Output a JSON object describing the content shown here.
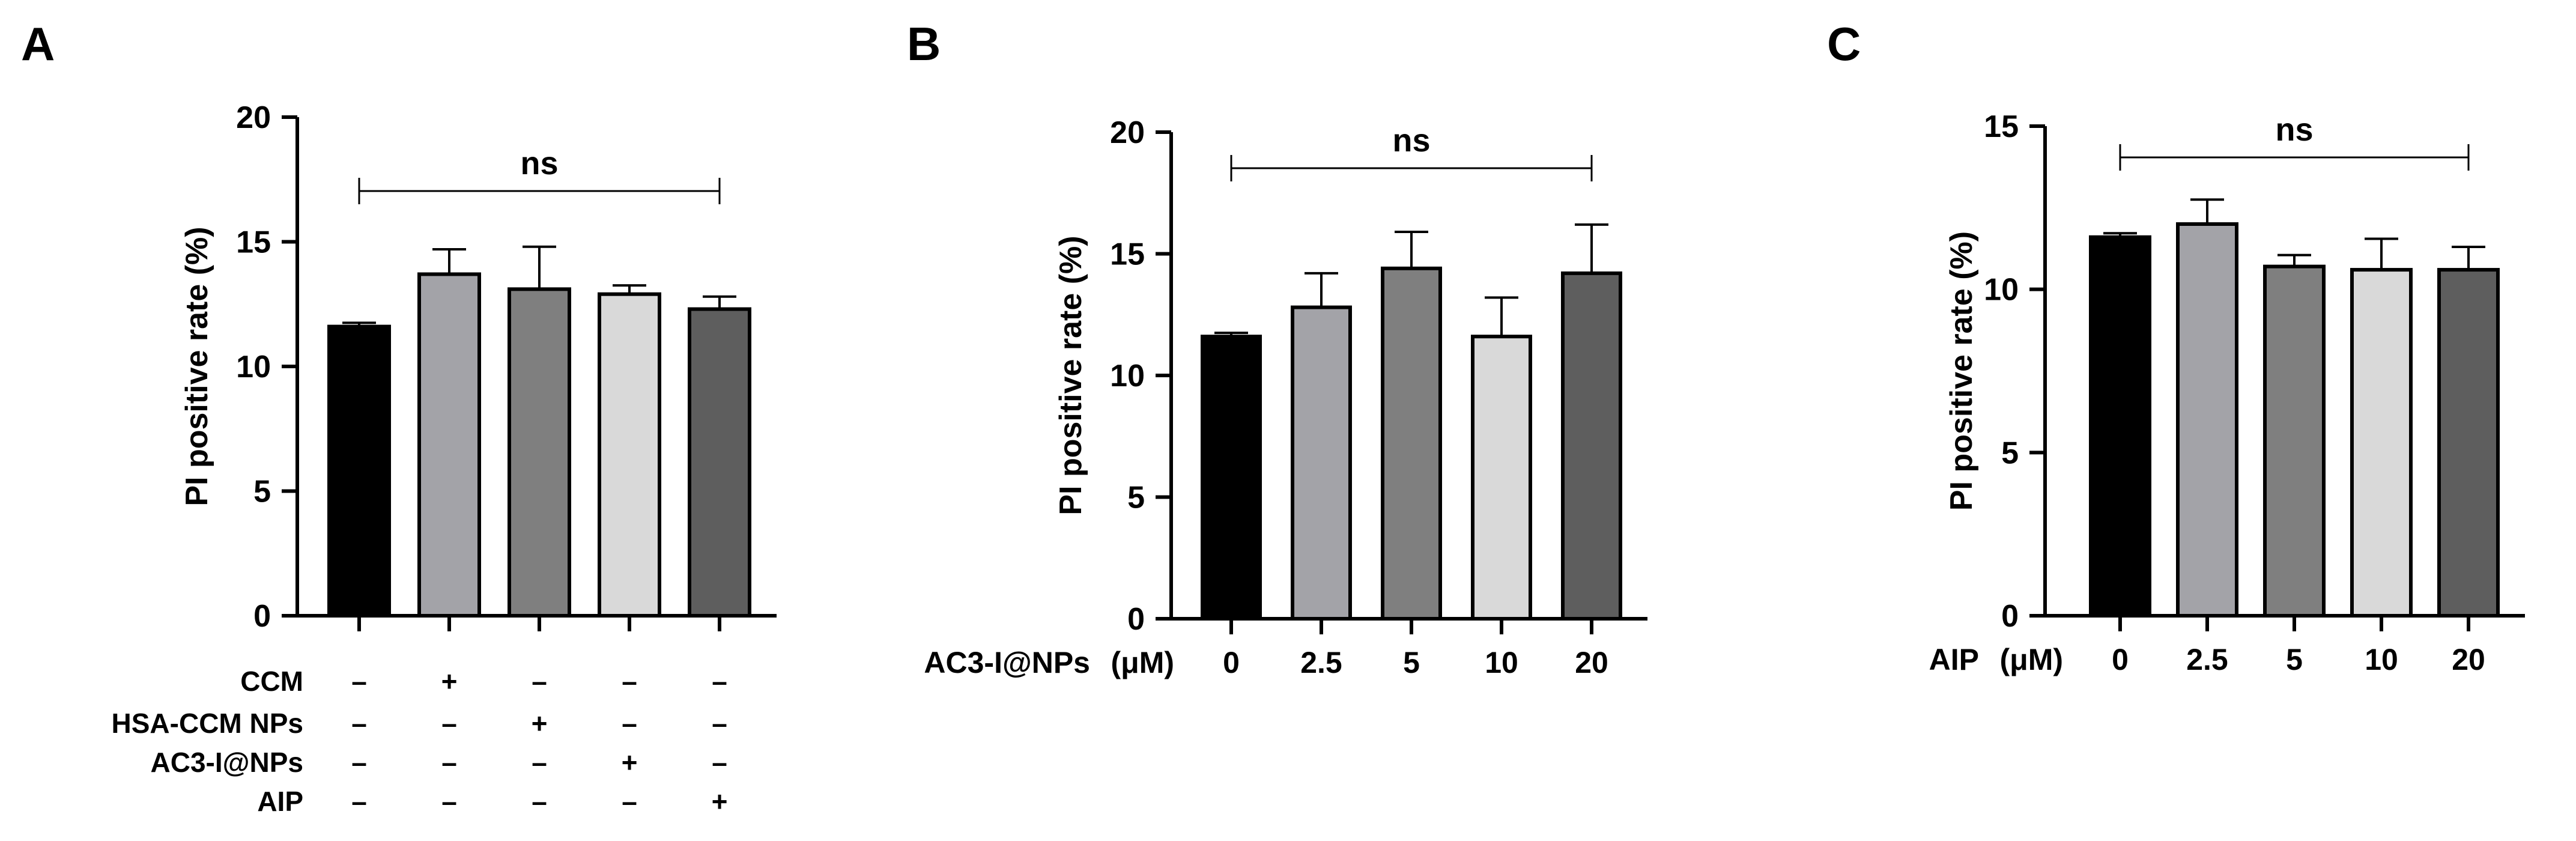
{
  "chart_data": [
    {
      "panel_label": "A",
      "type": "bar",
      "ylabel": "PI positive rate (%)",
      "ylim": [
        0,
        20
      ],
      "yticks": [
        0,
        5,
        10,
        15,
        20
      ],
      "bar_colors": [
        "#000000",
        "#a3a3a8",
        "#7f7f7f",
        "#d9d9d9",
        "#5e5e5e"
      ],
      "values": [
        11.6,
        13.7,
        13.1,
        12.9,
        12.3
      ],
      "errors": [
        0.15,
        1.0,
        1.7,
        0.35,
        0.5
      ],
      "significance": {
        "label": "ns",
        "from": 0,
        "to": 4
      },
      "condition_table": {
        "rows": [
          {
            "label": "CCM",
            "marks": [
              "–",
              "+",
              "–",
              "–",
              "–"
            ]
          },
          {
            "label": "HSA-CCM NPs",
            "marks": [
              "–",
              "–",
              "+",
              "–",
              "–"
            ]
          },
          {
            "label": "AC3-I@NPs",
            "marks": [
              "–",
              "–",
              "–",
              "+",
              "–"
            ]
          },
          {
            "label": "AIP",
            "marks": [
              "–",
              "–",
              "–",
              "–",
              "+"
            ]
          }
        ]
      }
    },
    {
      "panel_label": "B",
      "type": "bar",
      "ylabel": "PI positive rate (%)",
      "ylim": [
        0,
        20
      ],
      "yticks": [
        0,
        5,
        10,
        15,
        20
      ],
      "x_title": "AC3-I@NPs",
      "x_unit": "(μM)",
      "categories": [
        "0",
        "2.5",
        "5",
        "10",
        "20"
      ],
      "bar_colors": [
        "#000000",
        "#a3a3a8",
        "#7f7f7f",
        "#d9d9d9",
        "#5e5e5e"
      ],
      "values": [
        11.6,
        12.8,
        14.4,
        11.6,
        14.2
      ],
      "errors": [
        0.15,
        1.4,
        1.5,
        1.6,
        2.0
      ],
      "significance": {
        "label": "ns",
        "from": 0,
        "to": 4
      }
    },
    {
      "panel_label": "C",
      "type": "bar",
      "ylabel": "PI positive rate (%)",
      "ylim": [
        0,
        15
      ],
      "yticks": [
        0,
        5,
        10,
        15
      ],
      "x_title": "AIP",
      "x_unit": "(μM)",
      "categories": [
        "0",
        "2.5",
        "5",
        "10",
        "20"
      ],
      "bar_colors": [
        "#000000",
        "#a3a3a8",
        "#7f7f7f",
        "#d9d9d9",
        "#5e5e5e"
      ],
      "values": [
        11.6,
        12.0,
        10.7,
        10.6,
        10.6
      ],
      "errors": [
        0.12,
        0.75,
        0.35,
        0.95,
        0.7
      ],
      "significance": {
        "label": "ns",
        "from": 0,
        "to": 4
      }
    }
  ]
}
